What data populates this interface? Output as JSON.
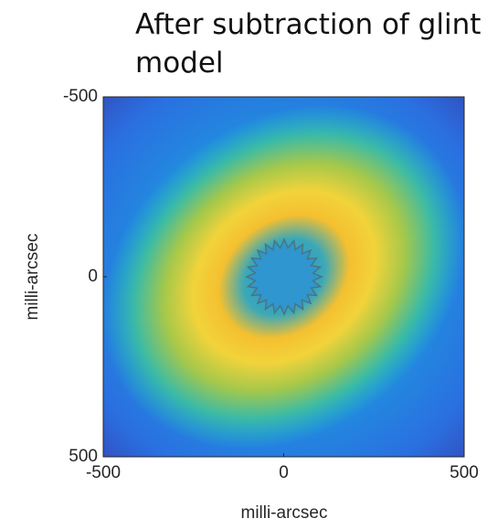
{
  "chart_data": {
    "type": "heatmap",
    "title": "After subtraction of glint model",
    "xlabel": "milli-arcsec",
    "ylabel": "milli-arcsec",
    "xlim": [
      -500,
      500
    ],
    "xticks": [
      -500,
      0,
      500
    ],
    "ylim": [
      500,
      -500
    ],
    "yticks": [
      -500,
      0,
      500
    ]
  }
}
